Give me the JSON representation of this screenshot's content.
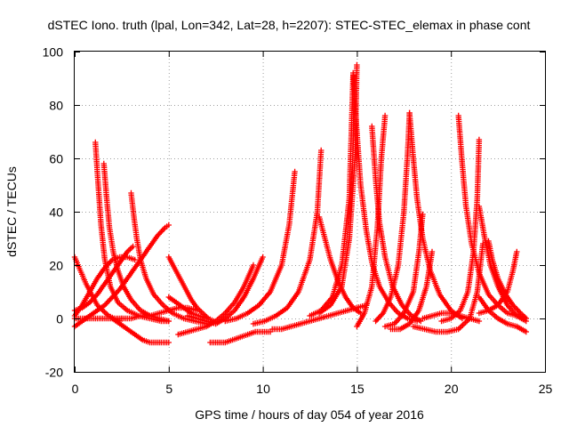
{
  "chart_data": {
    "type": "scatter",
    "title": "dSTEC Iono. truth (lpal, Lon=342, Lat=28, h=2207): STEC-STEC_elemax in phase cont",
    "xlabel": "GPS time / hours of day 054 of year 2016",
    "ylabel": "dSTEC  / TECUs",
    "xlim": [
      0,
      25
    ],
    "ylim": [
      -20,
      100
    ],
    "xticks": [
      "0",
      "5",
      "10",
      "15",
      "20",
      "25"
    ],
    "yticks": [
      "-20",
      "0",
      "20",
      "40",
      "60",
      "80",
      "100"
    ],
    "grid": true,
    "marker": "plus",
    "color": "#ff0000",
    "series": [
      {
        "x": [
          0.0,
          0.3,
          0.6,
          0.9,
          1.2,
          1.5,
          1.8,
          2.1,
          2.4
        ],
        "y": [
          23,
          18,
          13,
          9,
          5,
          3,
          1,
          0,
          -1
        ]
      },
      {
        "x": [
          0.0,
          0.4,
          0.8,
          1.2,
          1.6,
          2.0,
          2.4,
          2.8,
          3.2,
          3.6,
          4.0,
          4.4,
          4.8,
          5.0
        ],
        "y": [
          -3,
          -1,
          1,
          3,
          5,
          8,
          11,
          15,
          19,
          23,
          27,
          31,
          34,
          35
        ]
      },
      {
        "x": [
          0.0,
          0.4,
          0.8,
          1.2,
          1.6,
          2.0,
          2.4,
          2.8,
          3.1
        ],
        "y": [
          3,
          4,
          6,
          9,
          13,
          17,
          21,
          25,
          27
        ]
      },
      {
        "x": [
          1.1,
          1.25,
          1.4,
          1.6,
          1.9,
          2.3,
          2.8,
          3.4,
          4.0,
          4.6,
          5.0
        ],
        "y": [
          66,
          50,
          35,
          22,
          12,
          6,
          3,
          1,
          0,
          -1,
          -1
        ]
      },
      {
        "x": [
          1.55,
          1.7,
          1.85,
          2.05,
          2.3,
          2.6,
          3.0,
          3.5,
          4.0,
          4.5,
          5.0
        ],
        "y": [
          58,
          45,
          34,
          25,
          18,
          12,
          7,
          3,
          1,
          0,
          -1
        ]
      },
      {
        "x": [
          3.0,
          3.15,
          3.3,
          3.5,
          3.8,
          4.2,
          4.7,
          5.2,
          5.8,
          6.4,
          7.0
        ],
        "y": [
          47,
          38,
          30,
          22,
          15,
          9,
          5,
          2,
          0,
          -1,
          -2
        ]
      },
      {
        "x": [
          0.0,
          0.4,
          0.8,
          1.2,
          1.6,
          2.0,
          2.4,
          2.8,
          3.2
        ],
        "y": [
          1,
          5,
          10,
          15,
          19,
          22,
          23,
          23,
          22
        ]
      },
      {
        "x": [
          2.0,
          2.4,
          2.8,
          3.2,
          3.6,
          4.0,
          4.4,
          4.8,
          5.0
        ],
        "y": [
          0,
          -2,
          -4,
          -6,
          -8,
          -9,
          -9,
          -9,
          -9
        ]
      },
      {
        "x": [
          5.0,
          5.3,
          5.6,
          5.9,
          6.2,
          6.5,
          6.8,
          7.1,
          7.4
        ],
        "y": [
          23,
          19,
          15,
          11,
          7,
          4,
          2,
          0,
          -1
        ]
      },
      {
        "x": [
          5.5,
          6.0,
          6.5,
          7.0,
          7.5,
          8.0,
          8.5,
          9.0,
          9.5
        ],
        "y": [
          -6,
          -5,
          -4,
          -3,
          -1,
          2,
          6,
          12,
          20
        ]
      },
      {
        "x": [
          6.0,
          6.5,
          7.0,
          7.5,
          8.0,
          8.5,
          9.0,
          9.5,
          10.0
        ],
        "y": [
          1,
          0,
          -1,
          -2,
          0,
          3,
          8,
          15,
          23
        ]
      },
      {
        "x": [
          7.2,
          7.6,
          8.0,
          8.4,
          8.8,
          9.2,
          9.6,
          10.0,
          10.4
        ],
        "y": [
          -9,
          -9,
          -9,
          -8,
          -7,
          -6,
          -5,
          -5,
          -5
        ]
      },
      {
        "x": [
          8.0,
          8.6,
          9.2,
          9.8,
          10.4,
          11.0,
          11.4,
          11.7
        ],
        "y": [
          -1,
          0,
          2,
          5,
          10,
          20,
          35,
          55
        ]
      },
      {
        "x": [
          9.5,
          10.1,
          10.7,
          11.3,
          11.9,
          12.5,
          12.9,
          13.1
        ],
        "y": [
          -2,
          -1,
          1,
          4,
          10,
          22,
          40,
          63
        ]
      },
      {
        "x": [
          10.5,
          11.0,
          11.5,
          12.0,
          12.5,
          13.0,
          13.5,
          14.0,
          14.5,
          15.0,
          15.5
        ],
        "y": [
          -4,
          -4,
          -3,
          -2,
          -1,
          0,
          1,
          2,
          3,
          4,
          5
        ]
      },
      {
        "x": [
          13.0,
          13.3,
          13.6,
          14.0,
          14.4,
          14.8,
          15.2
        ],
        "y": [
          38,
          30,
          22,
          14,
          8,
          4,
          2
        ]
      },
      {
        "x": [
          12.5,
          13.1,
          13.7,
          14.2,
          14.6,
          14.8
        ],
        "y": [
          1,
          3,
          8,
          20,
          45,
          91
        ]
      },
      {
        "x": [
          13.0,
          13.6,
          14.2,
          14.6,
          14.9,
          15.0
        ],
        "y": [
          2,
          5,
          12,
          30,
          60,
          95
        ]
      },
      {
        "x": [
          14.8,
          15.0,
          15.2,
          15.5,
          15.8,
          16.2,
          16.7,
          17.2,
          17.7,
          18.2
        ],
        "y": [
          92,
          70,
          50,
          33,
          21,
          12,
          6,
          2,
          0,
          -1
        ]
      },
      {
        "x": [
          15.0,
          15.4,
          15.8,
          16.1,
          16.3,
          16.5
        ],
        "y": [
          -3,
          2,
          12,
          35,
          60,
          76
        ]
      },
      {
        "x": [
          15.8,
          16.0,
          16.2,
          16.5,
          16.9,
          17.4,
          17.9,
          18.4
        ],
        "y": [
          72,
          52,
          36,
          23,
          12,
          5,
          1,
          -1
        ]
      },
      {
        "x": [
          16.0,
          16.4,
          16.8,
          17.2,
          17.5,
          17.7,
          17.8
        ],
        "y": [
          -1,
          2,
          8,
          20,
          40,
          62,
          77
        ]
      },
      {
        "x": [
          17.8,
          18.0,
          18.2,
          18.5,
          18.9,
          19.4,
          20.0,
          20.6
        ],
        "y": [
          77,
          60,
          45,
          30,
          18,
          9,
          3,
          0
        ]
      },
      {
        "x": [
          16.5,
          17.0,
          17.5,
          18.0,
          18.3,
          18.5
        ],
        "y": [
          -3,
          -2,
          2,
          10,
          25,
          39
        ]
      },
      {
        "x": [
          16.8,
          17.3,
          17.8,
          18.3,
          18.7,
          19.0
        ],
        "y": [
          -4,
          -4,
          -2,
          3,
          12,
          25
        ]
      },
      {
        "x": [
          18.0,
          18.6,
          19.2,
          19.8,
          20.4,
          21.0,
          21.4,
          21.7
        ],
        "y": [
          -3,
          -4,
          -5,
          -5,
          -4,
          0,
          10,
          28
        ]
      },
      {
        "x": [
          20.4,
          20.6,
          20.8,
          21.1,
          21.5,
          22.0,
          22.5,
          23.0,
          23.5,
          24.0
        ],
        "y": [
          76,
          58,
          42,
          28,
          17,
          9,
          5,
          2,
          1,
          0
        ]
      },
      {
        "x": [
          19.5,
          20.0,
          20.5,
          20.9,
          21.2,
          21.4,
          21.5
        ],
        "y": [
          -1,
          0,
          3,
          10,
          25,
          45,
          67
        ]
      },
      {
        "x": [
          21.5,
          21.8,
          22.1,
          22.5,
          23.0,
          23.5,
          24.0
        ],
        "y": [
          42,
          30,
          20,
          12,
          5,
          1,
          -1
        ]
      },
      {
        "x": [
          22.0,
          22.2,
          22.5,
          22.9,
          23.3,
          23.7,
          24.0
        ],
        "y": [
          29,
          22,
          15,
          9,
          5,
          2,
          0
        ]
      },
      {
        "x": [
          21.5,
          22.0,
          22.5,
          23.0,
          23.3,
          23.5
        ],
        "y": [
          2,
          3,
          5,
          10,
          18,
          25
        ]
      },
      {
        "x": [
          21.5,
          22.0,
          22.5,
          23.0,
          23.5,
          24.0
        ],
        "y": [
          8,
          3,
          0,
          -2,
          -3,
          -5
        ]
      },
      {
        "x": [
          18.5,
          19.0,
          19.5,
          20.0,
          20.5,
          21.0,
          21.5
        ],
        "y": [
          0,
          1,
          2,
          2,
          1,
          0,
          -1
        ]
      },
      {
        "x": [
          5.0,
          5.4,
          5.8,
          6.2,
          6.6,
          7.0
        ],
        "y": [
          8,
          6,
          4,
          2,
          1,
          0
        ]
      },
      {
        "x": [
          2.5,
          3.0,
          3.5,
          4.0,
          4.5,
          5.0,
          5.5,
          6.0,
          6.5
        ],
        "y": [
          0,
          0,
          1,
          1,
          2,
          3,
          4,
          4,
          3
        ]
      },
      {
        "x": [
          0.0,
          0.5,
          1.0,
          1.5,
          2.0,
          2.5
        ],
        "y": [
          0,
          0,
          0,
          0,
          0,
          0
        ]
      }
    ]
  }
}
